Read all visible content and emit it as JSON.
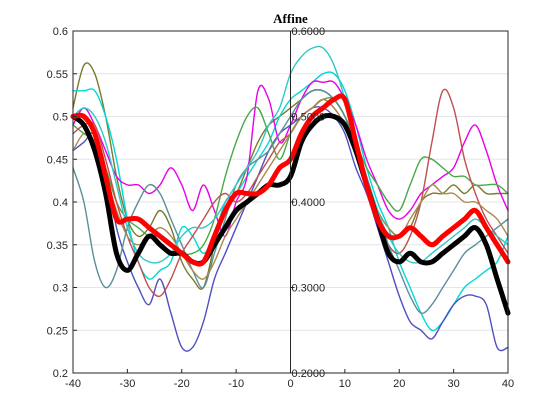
{
  "chart_data": {
    "type": "line",
    "title": "Affine",
    "xlabel": "",
    "ylabel": "",
    "xlim": [
      -40,
      40
    ],
    "ylim": [
      0.2,
      0.6
    ],
    "grid": "horizontal",
    "legend": "none",
    "x_ticks": [
      "-40",
      "-30",
      "-20",
      "-10",
      "0",
      "10",
      "20",
      "30",
      "40"
    ],
    "y_ticks": [
      "0.2",
      "0.25",
      "0.3",
      "0.35",
      "0.4",
      "0.45",
      "0.5",
      "0.55",
      "0.6"
    ],
    "inner_y_ticks": [
      "0.2000",
      "0.3000",
      "0.4000",
      "0.5000",
      "0.6000"
    ],
    "x": [
      -40,
      -38,
      -36,
      -34,
      -32,
      -30,
      -28,
      -26,
      -24,
      -22,
      -20,
      -18,
      -16,
      -14,
      -12,
      -10,
      -8,
      -6,
      -4,
      -2,
      0,
      2,
      4,
      6,
      8,
      10,
      12,
      14,
      16,
      18,
      20,
      22,
      24,
      26,
      28,
      30,
      32,
      34,
      36,
      38,
      40
    ],
    "series": [
      {
        "color": "#7a7a2a",
        "values": [
          0.51,
          0.56,
          0.55,
          0.5,
          0.43,
          0.38,
          0.36,
          0.37,
          0.39,
          0.37,
          0.33,
          0.31,
          0.3,
          0.35,
          0.4,
          0.41,
          0.44,
          0.47,
          0.49,
          0.5,
          0.51,
          0.52,
          0.53,
          0.53,
          0.52,
          0.5,
          0.46,
          0.42,
          0.39,
          0.37,
          0.36,
          0.37,
          0.4,
          0.41,
          0.41,
          0.42,
          0.41,
          0.42,
          0.41,
          0.41,
          0.41
        ]
      },
      {
        "color": "#00d8d8",
        "values": [
          0.53,
          0.53,
          0.53,
          0.5,
          0.45,
          0.38,
          0.33,
          0.31,
          0.32,
          0.33,
          0.37,
          0.36,
          0.34,
          0.36,
          0.4,
          0.41,
          0.43,
          0.45,
          0.47,
          0.5,
          0.52,
          0.53,
          0.54,
          0.55,
          0.55,
          0.53,
          0.49,
          0.44,
          0.4,
          0.37,
          0.33,
          0.3,
          0.27,
          0.25,
          0.26,
          0.28,
          0.3,
          0.31,
          0.32,
          0.33,
          0.36
        ]
      },
      {
        "color": "#4f4fc2",
        "values": [
          0.46,
          0.47,
          0.48,
          0.44,
          0.37,
          0.33,
          0.3,
          0.28,
          0.31,
          0.27,
          0.23,
          0.23,
          0.26,
          0.31,
          0.34,
          0.37,
          0.4,
          0.43,
          0.46,
          0.48,
          0.49,
          0.5,
          0.51,
          0.51,
          0.5,
          0.48,
          0.44,
          0.41,
          0.37,
          0.33,
          0.29,
          0.26,
          0.25,
          0.24,
          0.26,
          0.28,
          0.29,
          0.29,
          0.28,
          0.23,
          0.23
        ]
      },
      {
        "color": "#e800e8",
        "values": [
          0.49,
          0.51,
          0.49,
          0.46,
          0.43,
          0.42,
          0.42,
          0.41,
          0.42,
          0.44,
          0.42,
          0.39,
          0.42,
          0.39,
          0.36,
          0.4,
          0.43,
          0.53,
          0.52,
          0.47,
          0.49,
          0.52,
          0.54,
          0.54,
          0.54,
          0.52,
          0.49,
          0.45,
          0.42,
          0.39,
          0.38,
          0.39,
          0.41,
          0.42,
          0.43,
          0.44,
          0.47,
          0.49,
          0.46,
          0.42,
          0.39
        ]
      },
      {
        "color": "#4aa84a",
        "values": [
          0.49,
          0.48,
          0.47,
          0.44,
          0.4,
          0.38,
          0.37,
          0.36,
          0.36,
          0.35,
          0.34,
          0.34,
          0.35,
          0.38,
          0.43,
          0.47,
          0.5,
          0.51,
          0.48,
          0.45,
          0.48,
          0.5,
          0.51,
          0.52,
          0.52,
          0.5,
          0.47,
          0.44,
          0.42,
          0.4,
          0.39,
          0.42,
          0.45,
          0.45,
          0.44,
          0.43,
          0.43,
          0.42,
          0.42,
          0.42,
          0.41
        ]
      },
      {
        "color": "#c24e4e",
        "values": [
          0.48,
          0.49,
          0.49,
          0.45,
          0.4,
          0.36,
          0.33,
          0.3,
          0.29,
          0.31,
          0.34,
          0.36,
          0.38,
          0.4,
          0.41,
          0.4,
          0.41,
          0.43,
          0.45,
          0.47,
          0.48,
          0.5,
          0.51,
          0.52,
          0.51,
          0.49,
          0.46,
          0.42,
          0.38,
          0.35,
          0.34,
          0.36,
          0.4,
          0.47,
          0.53,
          0.51,
          0.45,
          0.41,
          0.38,
          0.36,
          0.34
        ]
      },
      {
        "color": "#5a8f9a",
        "values": [
          0.44,
          0.4,
          0.33,
          0.3,
          0.32,
          0.37,
          0.4,
          0.42,
          0.41,
          0.38,
          0.35,
          0.32,
          0.3,
          0.34,
          0.38,
          0.42,
          0.44,
          0.45,
          0.46,
          0.48,
          0.5,
          0.52,
          0.53,
          0.53,
          0.52,
          0.5,
          0.47,
          0.43,
          0.39,
          0.35,
          0.32,
          0.29,
          0.27,
          0.28,
          0.3,
          0.32,
          0.34,
          0.35,
          0.36,
          0.37,
          0.38
        ]
      },
      {
        "color": "#a88a50",
        "values": [
          0.46,
          0.48,
          0.47,
          0.43,
          0.39,
          0.36,
          0.35,
          0.36,
          0.37,
          0.36,
          0.34,
          0.32,
          0.31,
          0.33,
          0.36,
          0.38,
          0.4,
          0.42,
          0.44,
          0.46,
          0.48,
          0.5,
          0.51,
          0.52,
          0.51,
          0.49,
          0.46,
          0.42,
          0.39,
          0.37,
          0.36,
          0.38,
          0.4,
          0.42,
          0.41,
          0.41,
          0.4,
          0.4,
          0.39,
          0.38,
          0.36
        ]
      },
      {
        "color": "#30c8c8",
        "values": [
          0.5,
          0.51,
          0.5,
          0.47,
          0.42,
          0.37,
          0.34,
          0.33,
          0.33,
          0.34,
          0.36,
          0.37,
          0.37,
          0.38,
          0.4,
          0.42,
          0.44,
          0.46,
          0.49,
          0.51,
          0.55,
          0.57,
          0.58,
          0.58,
          0.56,
          0.52,
          0.47,
          0.43,
          0.39,
          0.36,
          0.34,
          0.33,
          0.33,
          0.34,
          0.35,
          0.36,
          0.37,
          0.38,
          0.37,
          0.36,
          0.35
        ]
      },
      {
        "color": "#000000",
        "width": 5,
        "values": [
          0.5,
          0.49,
          0.46,
          0.41,
          0.34,
          0.32,
          0.34,
          0.36,
          0.35,
          0.34,
          0.34,
          0.33,
          0.33,
          0.35,
          0.37,
          0.39,
          0.4,
          0.41,
          0.42,
          0.42,
          0.43,
          0.47,
          0.49,
          0.5,
          0.5,
          0.49,
          0.46,
          0.42,
          0.38,
          0.34,
          0.33,
          0.34,
          0.33,
          0.33,
          0.34,
          0.35,
          0.36,
          0.37,
          0.35,
          0.31,
          0.27
        ]
      },
      {
        "color": "#ff0000",
        "width": 5,
        "values": [
          0.5,
          0.5,
          0.48,
          0.43,
          0.38,
          0.38,
          0.38,
          0.37,
          0.36,
          0.35,
          0.34,
          0.33,
          0.33,
          0.36,
          0.39,
          0.41,
          0.41,
          0.41,
          0.42,
          0.44,
          0.45,
          0.48,
          0.5,
          0.51,
          0.52,
          0.52,
          0.47,
          0.42,
          0.38,
          0.36,
          0.36,
          0.37,
          0.36,
          0.35,
          0.36,
          0.37,
          0.38,
          0.39,
          0.37,
          0.35,
          0.33
        ]
      }
    ]
  }
}
